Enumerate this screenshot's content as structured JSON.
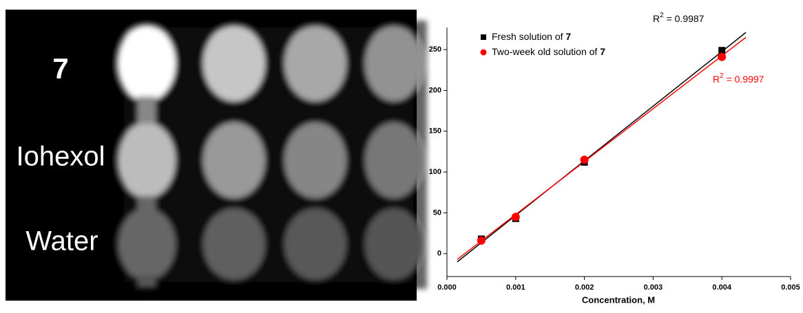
{
  "image": {
    "row_labels": [
      "7",
      "Iohexol",
      "Water"
    ]
  },
  "chart_data": {
    "type": "scatter",
    "x_label": "Concentration, M",
    "xlim": [
      0,
      0.005
    ],
    "xticks": [
      {
        "value": 0,
        "label": "0.000"
      },
      0.001,
      0.002,
      0.003,
      0.004,
      0.005
    ],
    "ylim": [
      -28,
      277
    ],
    "yticks": [
      0,
      50,
      100,
      150,
      200,
      250
    ],
    "series": [
      {
        "name": "Fresh solution of",
        "name_suffix": "7",
        "color": "#000000",
        "marker": "square",
        "x": [
          0.0005,
          0.001,
          0.002,
          0.004
        ],
        "values": [
          18,
          43,
          112,
          249
        ]
      },
      {
        "name": "Two-week old solution of",
        "name_suffix": "7",
        "color": "#ff0000",
        "marker": "circle",
        "x": [
          0.0005,
          0.001,
          0.002,
          0.004
        ],
        "values": [
          16,
          45,
          115,
          241
        ]
      }
    ],
    "fits": [
      {
        "color": "#000000",
        "x": [
          0.00015,
          0.00435
        ],
        "values": [
          -10,
          271
        ],
        "text": "R",
        "superscript": "2",
        "text_after": " = 0.9987"
      },
      {
        "color": "#ff0000",
        "x": [
          0.00015,
          0.00435
        ],
        "values": [
          -7,
          265
        ],
        "text": "R",
        "superscript": "2",
        "text_after": " = 0.9997"
      }
    ]
  }
}
